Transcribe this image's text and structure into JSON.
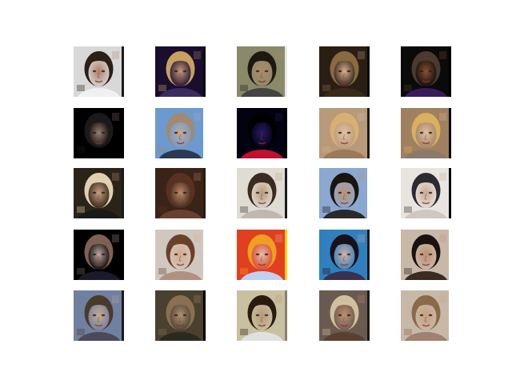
{
  "figure": {
    "background": "#ffffff",
    "rows": 5,
    "cols": 5,
    "tiles": [
      {
        "subject": "face",
        "bg": "#d8d8d8",
        "skin": "#b07d62",
        "hair": "#2a2018",
        "shirt": "#f0f0f0",
        "edge": "#1a1a1a"
      },
      {
        "subject": "face",
        "bg": "#1a0e2e",
        "skin": "#c49a7a",
        "hair": "#c8a060",
        "shirt": "#3a2a60",
        "edge": "#0a0a0a"
      },
      {
        "subject": "face",
        "bg": "#8a8a6a",
        "skin": "#b08868",
        "hair": "#1e1812",
        "shirt": "#444444",
        "edge": "#e8e8e8"
      },
      {
        "subject": "face",
        "bg": "#2a1e14",
        "skin": "#d8b090",
        "hair": "#8a6a40",
        "shirt": "#3a2a1a",
        "edge": "#0a0a0a"
      },
      {
        "subject": "face",
        "bg": "#0a0a0a",
        "skin": "#8a5030",
        "hair": "#4a3a30",
        "shirt": "#3a1a5a",
        "edge": "#000000"
      },
      {
        "subject": "face",
        "bg": "#000000",
        "skin": "#9a8070",
        "hair": "#1a1a1a",
        "shirt": "#000000",
        "edge": "#000000"
      },
      {
        "subject": "face",
        "bg": "#6a9ad0",
        "skin": "#c8a890",
        "hair": "#a08a70",
        "shirt": "#2a3a50",
        "edge": "#ffffff"
      },
      {
        "subject": "face",
        "bg": "#020210",
        "skin": "#2a1a6a",
        "hair": "#000000",
        "shirt": "#c01030",
        "edge": "#000000"
      },
      {
        "subject": "face",
        "bg": "#b89a7a",
        "skin": "#e0c0a0",
        "hair": "#d8b070",
        "shirt": "#9a7a5a",
        "edge": "#1a1a1a"
      },
      {
        "subject": "face",
        "bg": "#a08060",
        "skin": "#e0c0a0",
        "hair": "#d8b060",
        "shirt": "#8a7a6a",
        "edge": "#0a0a0a"
      },
      {
        "subject": "face",
        "bg": "#2a2418",
        "skin": "#c8a080",
        "hair": "#e0d0b0",
        "shirt": "#1a1a1a",
        "edge": "#1a1a1a"
      },
      {
        "subject": "face",
        "bg": "#3a2418",
        "skin": "#c08868",
        "hair": "#5a3020",
        "shirt": "#6a4030",
        "edge": "#2a1a10"
      },
      {
        "subject": "face",
        "bg": "#e0dcd4",
        "skin": "#b89878",
        "hair": "#3a2a20",
        "shirt": "#c0b8b0",
        "edge": "#1a1a1a"
      },
      {
        "subject": "face",
        "bg": "#8aa8d0",
        "skin": "#c09070",
        "hair": "#1a1410",
        "shirt": "#2a2a2a",
        "edge": "#ffffff"
      },
      {
        "subject": "face",
        "bg": "#e8e4e0",
        "skin": "#c8a890",
        "hair": "#2a2a30",
        "shirt": "#d0c8c0",
        "edge": "#0a0a0a"
      },
      {
        "subject": "face",
        "bg": "#000000",
        "skin": "#c0a8a0",
        "hair": "#806050",
        "shirt": "#1a1a2a",
        "edge": "#000000"
      },
      {
        "subject": "face",
        "bg": "#d0c8c0",
        "skin": "#d8a888",
        "hair": "#6a4028",
        "shirt": "#b09080",
        "edge": "#ffffff"
      },
      {
        "subject": "face",
        "bg": "#e04020",
        "skin": "#e0c0b0",
        "hair": "#f0a020",
        "shirt": "#c0d0f0",
        "edge": "#f8d000"
      },
      {
        "subject": "face",
        "bg": "#3080c0",
        "skin": "#d8b0a0",
        "hair": "#1a1018",
        "shirt": "#3a3050",
        "edge": "#1a1a1a"
      },
      {
        "subject": "face",
        "bg": "#c8b8a8",
        "skin": "#c09070",
        "hair": "#1a1210",
        "shirt": "#3a2a20",
        "edge": "#ffffff"
      },
      {
        "subject": "face",
        "bg": "#7080a0",
        "skin": "#c8a890",
        "hair": "#4a3a2a",
        "shirt": "#4a4a5a",
        "edge": "#1a1a1a"
      },
      {
        "subject": "face",
        "bg": "#4a4030",
        "skin": "#b09070",
        "hair": "#8a7050",
        "shirt": "#2a2a20",
        "edge": "#000000"
      },
      {
        "subject": "face",
        "bg": "#c8c0a0",
        "skin": "#b89878",
        "hair": "#2a1a10",
        "shirt": "#e0e0e0",
        "edge": "#8a8070"
      },
      {
        "subject": "face",
        "bg": "#6a5a50",
        "skin": "#c09070",
        "hair": "#d0c0a0",
        "shirt": "#5a4030",
        "edge": "#1a1a1a"
      },
      {
        "subject": "face",
        "bg": "#c8b8a8",
        "skin": "#c8a080",
        "hair": "#8a6a4a",
        "shirt": "#a08070",
        "edge": "#ffffff"
      }
    ]
  }
}
